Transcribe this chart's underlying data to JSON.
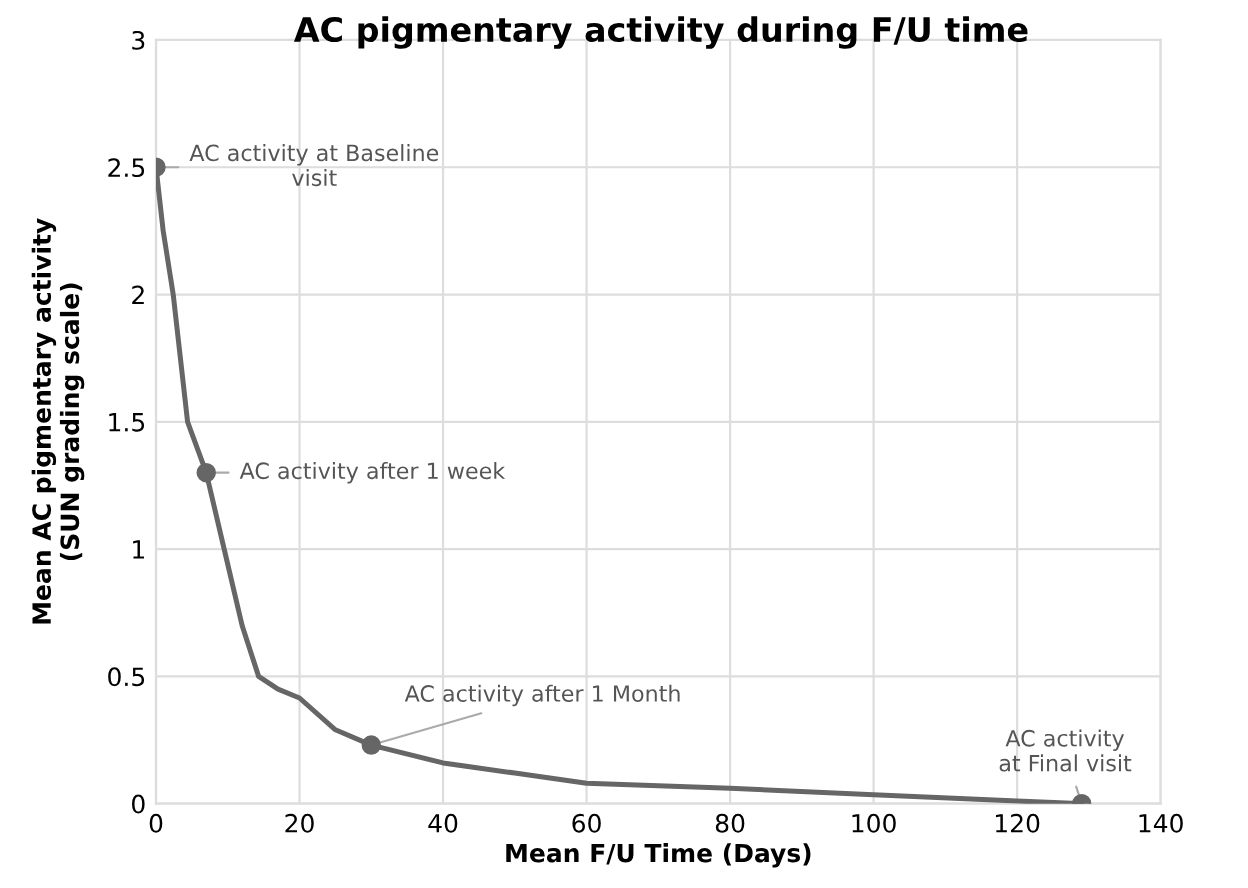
{
  "chart_data": {
    "type": "line",
    "title": "AC pigmentary activity during F/U time",
    "xlabel": "Mean F/U Time (Days)",
    "ylabel": "Mean AC pigmentary activity\n(SUN grading scale)",
    "series": [
      {
        "color": "#666666",
        "marker": "none",
        "x": [
          0,
          1,
          2.4,
          4.4,
          7,
          9.5,
          12,
          14.3,
          17,
          20,
          25,
          30,
          40,
          50,
          60,
          80,
          100,
          120,
          129
        ],
        "values": [
          2.5,
          2.25,
          2,
          1.5,
          1.3,
          1,
          0.7,
          0.5,
          0.45,
          0.415,
          0.29,
          0.23,
          0.16,
          0.12,
          0.08,
          0.06,
          0.035,
          0.01,
          0
        ]
      },
      {
        "type": "scatter",
        "color": "#666666",
        "marker": "circle",
        "x": [
          0,
          7,
          30,
          129
        ],
        "values": [
          2.5,
          1.3,
          0.23,
          0
        ]
      }
    ],
    "xlim": [
      0,
      140
    ],
    "xticks": [
      0,
      20,
      40,
      60,
      80,
      100,
      120,
      140
    ],
    "ylim": [
      0,
      3
    ],
    "yticks": [
      0,
      0.5,
      1,
      1.5,
      2,
      2.5,
      3
    ],
    "grid": true,
    "line_style": "solid",
    "annotations": [
      {
        "text": "AC activity at Baseline\nvisit",
        "x": 0,
        "y": 2.5
      },
      {
        "text": "AC activity after 1 week",
        "x": 7,
        "y": 1.3
      },
      {
        "text": "AC activity after 1 Month",
        "x": 30,
        "y": 0.23
      },
      {
        "text": "AC activity\nat Final visit",
        "x": 129,
        "y": 0
      }
    ]
  }
}
